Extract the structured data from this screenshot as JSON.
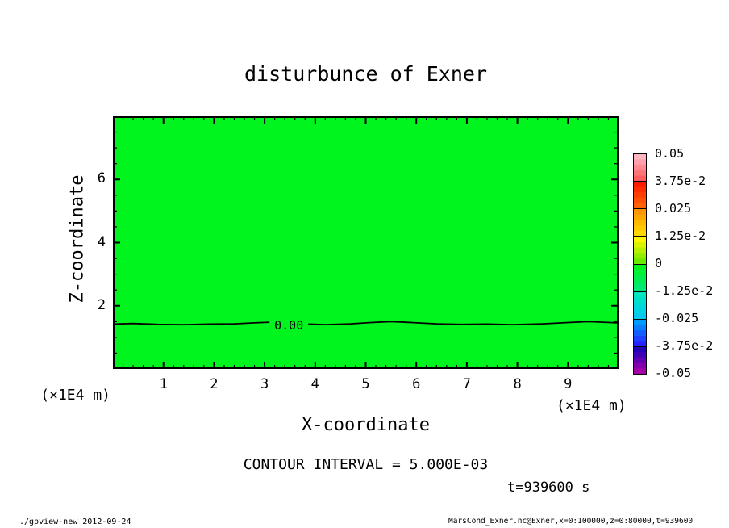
{
  "title": "disturbunce of Exner",
  "colors": {
    "background": "#ffffff",
    "plot_fill": "#00f41e",
    "line": "#000000"
  },
  "axes": {
    "x": {
      "label": "X-coordinate",
      "unit": "(×1E4 m)"
    },
    "z": {
      "label": "Z-coordinate"
    }
  },
  "contour": {
    "interval_text": "CONTOUR INTERVAL = 5.000E-03"
  },
  "time_text": "t=939600 s",
  "footer": {
    "left": "./gpview-new  2012-09-24",
    "right": "MarsCond_Exner.nc@Exner,x=0:100000,z=0:80000,t=939600"
  },
  "colorbar": {
    "tick_labels": [
      "0.05",
      "3.75e-2",
      "0.025",
      "1.25e-2",
      "0",
      "-1.25e-2",
      "-0.025",
      "-3.75e-2",
      "-0.05"
    ],
    "segments": [
      [
        "#ffb6c3",
        "#ff5f5f"
      ],
      [
        "#ff1900",
        "#ff6400"
      ],
      [
        "#ff9600",
        "#ffd700"
      ],
      [
        "#fff500",
        "#6eea00"
      ],
      [
        "#00f41e",
        "#00e878"
      ],
      [
        "#00e6be",
        "#00c8f0"
      ],
      [
        "#009bff",
        "#2621ff"
      ],
      [
        "#2400bb",
        "#a500a8"
      ]
    ]
  },
  "chart_data": {
    "type": "contour",
    "title": "disturbunce of Exner",
    "xlabel": "X-coordinate",
    "ylabel": "Z-coordinate",
    "x_unit": "×1E4 m",
    "y_unit": "×1E4 m",
    "xlim": [
      0,
      10
    ],
    "ylim": [
      0,
      8
    ],
    "x_major_ticks": [
      1,
      2,
      3,
      4,
      5,
      6,
      7,
      8,
      9
    ],
    "x_minor_step": 0.2,
    "y_major_ticks": [
      2,
      4,
      6
    ],
    "y_minor_step": 0.5,
    "grid": false,
    "contour_interval": 0.005,
    "colorbar_tick_values": [
      0.05,
      0.0375,
      0.025,
      0.0125,
      0,
      -0.0125,
      -0.025,
      -0.0375,
      -0.05
    ],
    "fill_color": "#00f41e",
    "field_note": "field nearly uniform (|value| < contour interval); only the 0.00 contour is drawn, near z = 1.4 (×1E4 m)",
    "zero_contour": {
      "label": "0.00",
      "label_x": 3.48,
      "label_z": 1.39,
      "points": [
        [
          0,
          1.42
        ],
        [
          0.4,
          1.44
        ],
        [
          0.9,
          1.41
        ],
        [
          1.4,
          1.4
        ],
        [
          1.9,
          1.42
        ],
        [
          2.4,
          1.43
        ],
        [
          2.8,
          1.46
        ],
        [
          3.1,
          1.48
        ],
        [
          3.5,
          1.46
        ],
        [
          3.85,
          1.42
        ],
        [
          4.2,
          1.4
        ],
        [
          4.7,
          1.43
        ],
        [
          5.1,
          1.47
        ],
        [
          5.5,
          1.5
        ],
        [
          5.9,
          1.47
        ],
        [
          6.4,
          1.43
        ],
        [
          6.9,
          1.41
        ],
        [
          7.4,
          1.42
        ],
        [
          7.9,
          1.4
        ],
        [
          8.5,
          1.43
        ],
        [
          9.0,
          1.47
        ],
        [
          9.4,
          1.5
        ],
        [
          9.7,
          1.48
        ],
        [
          10,
          1.46
        ]
      ]
    }
  }
}
